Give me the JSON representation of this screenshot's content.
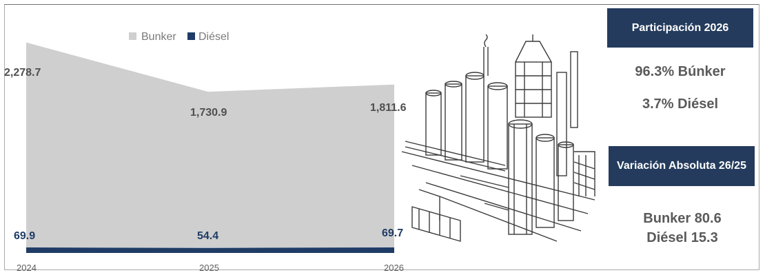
{
  "chart_data": {
    "type": "area",
    "categories": [
      "2024",
      "2025",
      "2026"
    ],
    "series": [
      {
        "name": "Bunker",
        "values": [
          2278.7,
          1730.9,
          1811.6
        ],
        "color": "#cfcfcf"
      },
      {
        "name": "Diésel",
        "values": [
          69.9,
          54.4,
          69.7
        ],
        "color": "#1f3c66"
      }
    ],
    "value_labels": {
      "bunker": [
        "2,278.7",
        "1,730.9",
        "1,811.6"
      ],
      "diesel": [
        "69.9",
        "54.4",
        "69.7"
      ]
    },
    "legend": [
      "Bunker",
      "Diésel"
    ],
    "legend_position": "top",
    "grid": false
  },
  "side_panel": {
    "participation_title": "Participación 2026",
    "participation_lines": [
      "96.3% Búnker",
      "3.7% Diésel"
    ],
    "variation_title": "Variación Absoluta 26/25",
    "variation_lines": [
      "Bunker 80.6",
      "Diésel 15.3"
    ],
    "header_color": "#243b5d"
  },
  "illustration": {
    "icon": "industrial-plant-sketch-icon"
  }
}
